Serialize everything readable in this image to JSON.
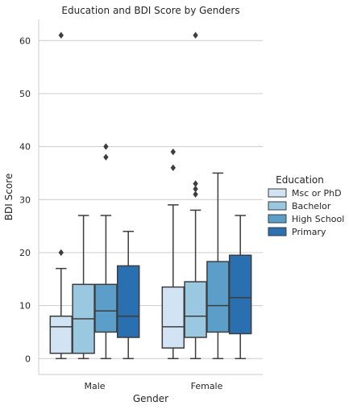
{
  "chart_data": {
    "type": "box",
    "title": "Education and BDI Score by Genders",
    "xlabel": "Gender",
    "ylabel": "BDI Score",
    "ylim": [
      -3,
      64
    ],
    "yticks": [
      0,
      10,
      20,
      30,
      40,
      50,
      60
    ],
    "grid": "horizontal",
    "categories": [
      "Male",
      "Female"
    ],
    "legend": {
      "title": "Education",
      "placement": "right"
    },
    "series": [
      {
        "name": "Msc or PhD",
        "color": "#d2e3f3",
        "boxes": [
          {
            "whislo": 0,
            "q1": 1,
            "med": 6,
            "q3": 8,
            "whishi": 17,
            "fliers": [
              20,
              61
            ]
          },
          {
            "whislo": 0,
            "q1": 2,
            "med": 6,
            "q3": 13.5,
            "whishi": 29,
            "fliers": [
              36,
              39
            ]
          }
        ]
      },
      {
        "name": "Bachelor",
        "color": "#9ac8e0",
        "boxes": [
          {
            "whislo": 0,
            "q1": 1,
            "med": 7.5,
            "q3": 14,
            "whishi": 27,
            "fliers": []
          },
          {
            "whislo": 0,
            "q1": 4,
            "med": 8,
            "q3": 14.5,
            "whishi": 28,
            "fliers": [
              31,
              32,
              33,
              61
            ]
          }
        ]
      },
      {
        "name": "High School",
        "color": "#5a9ec9",
        "boxes": [
          {
            "whislo": 0,
            "q1": 5,
            "med": 9,
            "q3": 14,
            "whishi": 27,
            "fliers": [
              38,
              40
            ]
          },
          {
            "whislo": 0,
            "q1": 5,
            "med": 10,
            "q3": 18.3,
            "whishi": 35,
            "fliers": []
          }
        ]
      },
      {
        "name": "Primary",
        "color": "#2a6fb0",
        "boxes": [
          {
            "whislo": 0,
            "q1": 4,
            "med": 8,
            "q3": 17.5,
            "whishi": 24,
            "fliers": []
          },
          {
            "whislo": 0,
            "q1": 4.7,
            "med": 11.5,
            "q3": 19.5,
            "whishi": 27,
            "fliers": []
          }
        ]
      }
    ]
  }
}
